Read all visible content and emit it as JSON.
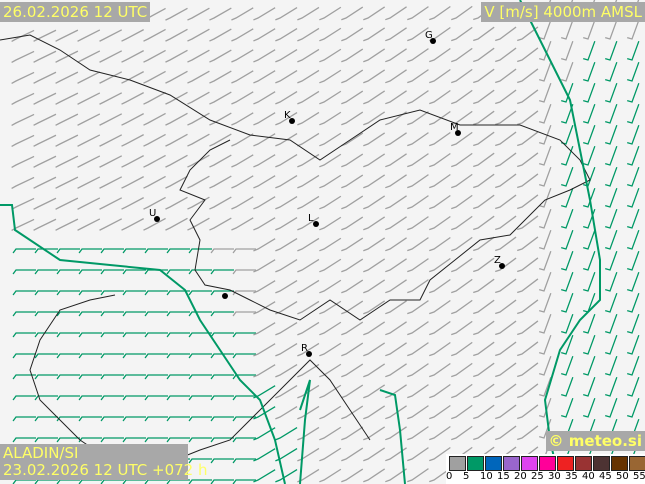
{
  "header": {
    "valid_time": "26.02.2026 12 UTC",
    "parameter": "V [m/s] 4000m AMSL"
  },
  "footer": {
    "model": "ALADIN/SI",
    "run": "23.02.2026 12 UTC +072 h",
    "copyright": "© meteo.si"
  },
  "cities": [
    {
      "label": "G"
    },
    {
      "label": "K"
    },
    {
      "label": "M"
    },
    {
      "label": "U"
    },
    {
      "label": "L"
    },
    {
      "label": "Z"
    },
    {
      "label": "R"
    },
    {
      "label": ""
    }
  ],
  "legend": {
    "unit": "m/s",
    "classes": [
      {
        "value": "0",
        "color": "#a0a0a0"
      },
      {
        "value": "5",
        "color": "#009966"
      },
      {
        "value": "10",
        "color": "#0066bb"
      },
      {
        "value": "15",
        "color": "#9966cc"
      },
      {
        "value": "20",
        "color": "#dd44ee"
      },
      {
        "value": "25",
        "color": "#ff0099"
      },
      {
        "value": "30",
        "color": "#ee2222"
      },
      {
        "value": "35",
        "color": "#993333"
      },
      {
        "value": "40",
        "color": "#4d3333"
      },
      {
        "value": "45",
        "color": "#663300"
      },
      {
        "value": "50",
        "color": "#996633"
      },
      {
        "value": "55",
        "color": "#bb9966"
      }
    ]
  },
  "colors": {
    "barb_calm": "#a0a0a0",
    "barb_5": "#009966",
    "isotach": "#009966",
    "border": "#222222"
  }
}
